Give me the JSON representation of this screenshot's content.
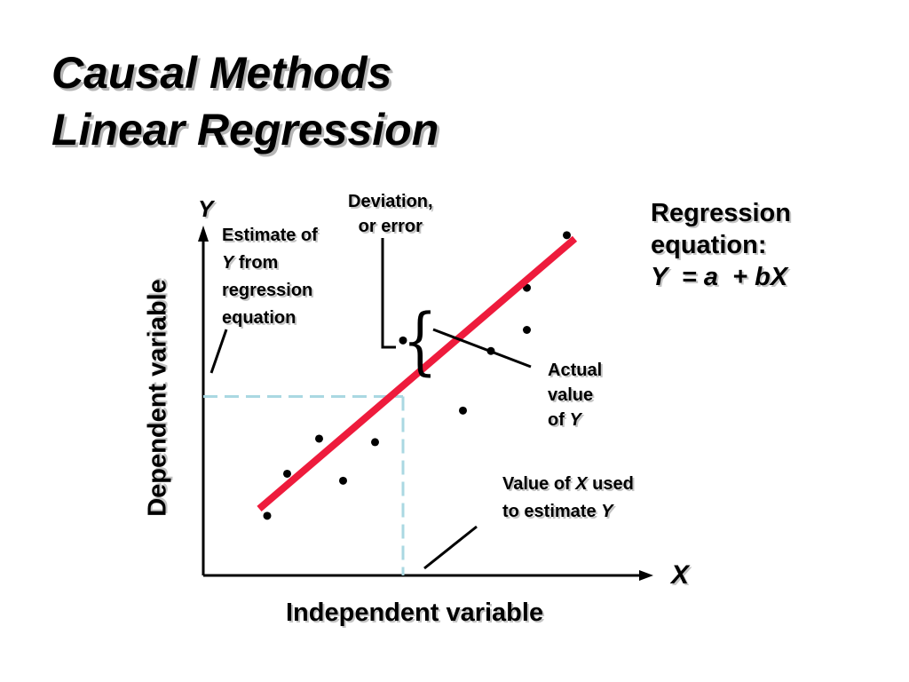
{
  "title": {
    "line1": "Causal Methods",
    "line2": "Linear Regression"
  },
  "axes": {
    "y_letter": "Y",
    "x_letter": "X",
    "ylabel": "Dependent variable",
    "xlabel": "Independent variable"
  },
  "annotations": {
    "estimate": {
      "line1": "Estimate of",
      "line2_var": "Y",
      "line2_rest": " from",
      "line3": "regression",
      "line4": "equation"
    },
    "deviation": {
      "line1": "Deviation,",
      "line2": "or error"
    },
    "actual": {
      "line1": "Actual",
      "line2": "value",
      "line3_pre": "of ",
      "line3_var": "Y"
    },
    "value_x": {
      "pre": "Value of ",
      "var_x": "X",
      "mid": " used",
      "line2_pre": "to estimate ",
      "var_y": "Y"
    },
    "regression": {
      "line1": "Regression",
      "line2": "equation:",
      "equation": "Y  = a  + bX"
    }
  },
  "colors": {
    "regression_line": "#ee1b3c",
    "guide_line": "#aad8e2",
    "axes": "#000000"
  },
  "chart_data": {
    "type": "scatter",
    "points": [
      {
        "x": 0.16,
        "y": 0.17
      },
      {
        "x": 0.21,
        "y": 0.29
      },
      {
        "x": 0.29,
        "y": 0.39
      },
      {
        "x": 0.35,
        "y": 0.27
      },
      {
        "x": 0.43,
        "y": 0.38
      },
      {
        "x": 0.5,
        "y": 0.67
      },
      {
        "x": 0.65,
        "y": 0.47
      },
      {
        "x": 0.72,
        "y": 0.64
      },
      {
        "x": 0.81,
        "y": 0.7
      },
      {
        "x": 0.81,
        "y": 0.82
      },
      {
        "x": 0.91,
        "y": 0.97
      }
    ],
    "regression_line": {
      "x_start": 0.14,
      "y_start": 0.19,
      "x_end": 0.93,
      "y_end": 0.96
    },
    "estimate_point": {
      "x": 0.5,
      "y": 0.51
    },
    "xlim": [
      0,
      1
    ],
    "ylim": [
      0,
      1
    ]
  }
}
